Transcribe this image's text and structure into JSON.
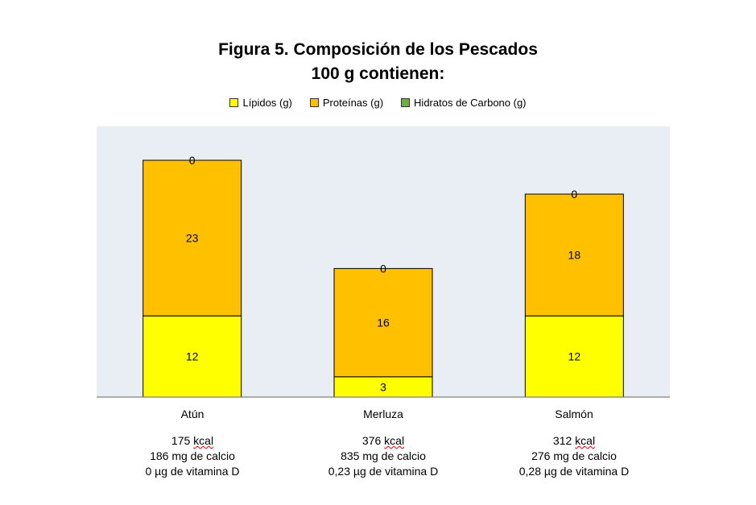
{
  "chart_data": {
    "type": "bar",
    "stacked": true,
    "title": "Figura 5. Composición de los Pescados",
    "subtitle": "100 g contienen:",
    "categories": [
      "Atún",
      "Merluza",
      "Salmón"
    ],
    "series": [
      {
        "name": "Lípidos (g)",
        "color": "#ffff00",
        "values": [
          12,
          3,
          12
        ]
      },
      {
        "name": "Proteínas (g)",
        "color": "#ffc000",
        "values": [
          23,
          16,
          18
        ]
      },
      {
        "name": "Hidratos de Carbono (g)",
        "color": "#70ad47",
        "values": [
          0,
          0,
          0
        ]
      }
    ],
    "ylim": [
      0,
      40
    ],
    "grid": false,
    "legend": "top",
    "plot_background": "#e9edf4",
    "category_notes": [
      {
        "kcal_value": "175",
        "kcal_unit": "kcal",
        "calcio": "186 mg de calcio",
        "vitamina_d": "0 µg de vitamina D"
      },
      {
        "kcal_value": "376",
        "kcal_unit": "kcal",
        "calcio": "835 mg de calcio",
        "vitamina_d": "0,23 µg de vitamina D"
      },
      {
        "kcal_value": "312",
        "kcal_unit": "kcal",
        "calcio": "276 mg de calcio",
        "vitamina_d": "0,28 µg de vitamina D"
      }
    ]
  }
}
